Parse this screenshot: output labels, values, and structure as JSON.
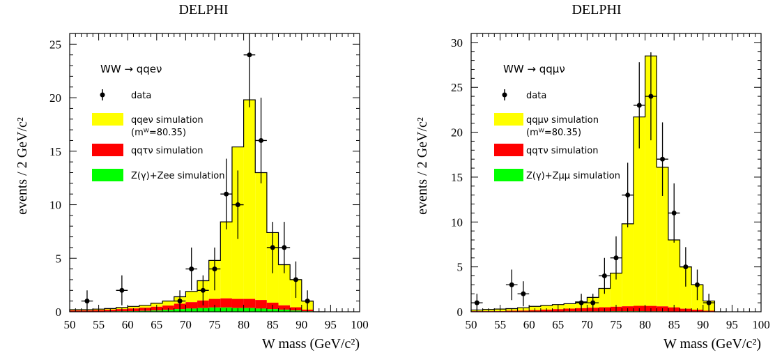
{
  "chart_data": [
    {
      "type": "bar",
      "title": "DELPHI",
      "process": "WW → qqeν",
      "xlabel": "W mass (GeV/c²)",
      "ylabel": "events / 2 GeV/c²",
      "xlim": [
        50,
        100
      ],
      "ylim": [
        0,
        26
      ],
      "xticks": [
        50,
        55,
        60,
        65,
        70,
        75,
        80,
        85,
        90,
        95,
        100
      ],
      "yticks": [
        0,
        5,
        10,
        15,
        20,
        25
      ],
      "bin_width": 2,
      "legend": {
        "data": "data",
        "signal": "qqeν simulation",
        "signal_note": "(mᵂ=80.35)",
        "tau": "qqτν simulation",
        "z": "Z(γ)+Zee simulation"
      },
      "bins": [
        50,
        52,
        54,
        56,
        58,
        60,
        62,
        64,
        66,
        68,
        70,
        72,
        74,
        76,
        78,
        80,
        82,
        84,
        86,
        88,
        90,
        92
      ],
      "series": [
        {
          "name": "qqeν simulation",
          "color": "#ffff00",
          "values": [
            0.2,
            0.2,
            0.25,
            0.3,
            0.4,
            0.5,
            0.6,
            0.8,
            1.0,
            1.4,
            1.9,
            2.9,
            4.8,
            8.4,
            15.4,
            19.8,
            13.0,
            7.4,
            4.4,
            3.0,
            1.0,
            0
          ]
        },
        {
          "name": "qqτν simulation",
          "color": "#ff0000",
          "values": [
            0.1,
            0.1,
            0.12,
            0.15,
            0.2,
            0.25,
            0.3,
            0.35,
            0.4,
            0.5,
            0.6,
            0.7,
            0.8,
            0.85,
            0.85,
            0.85,
            0.8,
            0.6,
            0.4,
            0.3,
            0.15,
            0
          ]
        },
        {
          "name": "Z(γ)+Zee simulation",
          "color": "#00ff00",
          "values": [
            0.02,
            0.02,
            0.03,
            0.04,
            0.05,
            0.06,
            0.08,
            0.12,
            0.18,
            0.25,
            0.3,
            0.35,
            0.4,
            0.4,
            0.35,
            0.35,
            0.3,
            0.25,
            0.2,
            0.12,
            0.05,
            0
          ]
        }
      ],
      "data_points": [
        {
          "x": 53,
          "y": 1,
          "err": 1.0
        },
        {
          "x": 59,
          "y": 2,
          "err": 1.4
        },
        {
          "x": 69,
          "y": 1,
          "err": 1.0
        },
        {
          "x": 71,
          "y": 4,
          "err": 2.0
        },
        {
          "x": 73,
          "y": 2,
          "err": 1.4
        },
        {
          "x": 75,
          "y": 4,
          "err": 2.0
        },
        {
          "x": 77,
          "y": 11,
          "err": 3.3
        },
        {
          "x": 79,
          "y": 10,
          "err": 3.2
        },
        {
          "x": 81,
          "y": 24,
          "err": 4.9
        },
        {
          "x": 83,
          "y": 16,
          "err": 4.0
        },
        {
          "x": 85,
          "y": 6,
          "err": 2.4
        },
        {
          "x": 87,
          "y": 6,
          "err": 2.4
        },
        {
          "x": 89,
          "y": 3,
          "err": 1.7
        },
        {
          "x": 91,
          "y": 1,
          "err": 1.0
        }
      ]
    },
    {
      "type": "bar",
      "title": "DELPHI",
      "process": "WW → qqμν",
      "xlabel": "W mass (GeV/c²)",
      "ylabel": "events / 2 GeV/c²",
      "xlim": [
        50,
        100
      ],
      "ylim": [
        0,
        31
      ],
      "xticks": [
        50,
        55,
        60,
        65,
        70,
        75,
        80,
        85,
        90,
        95,
        100
      ],
      "yticks": [
        0,
        5,
        10,
        15,
        20,
        25,
        30
      ],
      "bin_width": 2,
      "legend": {
        "data": "data",
        "signal": "qqμν simulation",
        "signal_note": "(mᵂ=80.35)",
        "tau": "qqτν simulation",
        "z": "Z(γ)+Zμμ simulation"
      },
      "bins": [
        50,
        52,
        54,
        56,
        58,
        60,
        62,
        64,
        66,
        68,
        70,
        72,
        74,
        76,
        78,
        80,
        82,
        84,
        86,
        88,
        90,
        92
      ],
      "series": [
        {
          "name": "qqμν simulation",
          "color": "#ffff00",
          "values": [
            0.2,
            0.25,
            0.3,
            0.35,
            0.45,
            0.6,
            0.7,
            0.8,
            0.9,
            1.1,
            1.6,
            2.6,
            4.3,
            9.8,
            21.7,
            28.5,
            16.1,
            8.0,
            5.0,
            3.0,
            1.2,
            0
          ]
        },
        {
          "name": "qqτν simulation",
          "color": "#ff0000",
          "values": [
            0.05,
            0.05,
            0.05,
            0.1,
            0.1,
            0.15,
            0.2,
            0.25,
            0.3,
            0.35,
            0.4,
            0.45,
            0.5,
            0.55,
            0.6,
            0.6,
            0.55,
            0.45,
            0.3,
            0.2,
            0.1,
            0
          ]
        },
        {
          "name": "Z(γ)+Zμμ simulation",
          "color": "#00ff00",
          "values": [
            0.02,
            0.02,
            0.02,
            0.02,
            0.03,
            0.03,
            0.04,
            0.04,
            0.05,
            0.05,
            0.05,
            0.05,
            0.06,
            0.06,
            0.06,
            0.05,
            0.05,
            0.04,
            0.04,
            0.03,
            0.02,
            0
          ]
        }
      ],
      "data_points": [
        {
          "x": 51,
          "y": 1,
          "err": 1.0
        },
        {
          "x": 57,
          "y": 3,
          "err": 1.7
        },
        {
          "x": 59,
          "y": 2,
          "err": 1.4
        },
        {
          "x": 69,
          "y": 1,
          "err": 1.0
        },
        {
          "x": 71,
          "y": 1,
          "err": 1.0
        },
        {
          "x": 73,
          "y": 4,
          "err": 2.0
        },
        {
          "x": 75,
          "y": 6,
          "err": 2.4
        },
        {
          "x": 77,
          "y": 13,
          "err": 3.6
        },
        {
          "x": 79,
          "y": 23,
          "err": 4.8
        },
        {
          "x": 81,
          "y": 24,
          "err": 4.9
        },
        {
          "x": 83,
          "y": 17,
          "err": 4.1
        },
        {
          "x": 85,
          "y": 11,
          "err": 3.3
        },
        {
          "x": 87,
          "y": 5,
          "err": 2.2
        },
        {
          "x": 89,
          "y": 3,
          "err": 1.7
        },
        {
          "x": 91,
          "y": 1,
          "err": 1.0
        }
      ]
    }
  ]
}
